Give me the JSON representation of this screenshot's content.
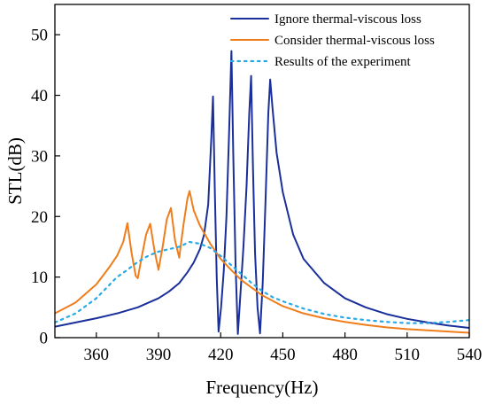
{
  "chart_data": {
    "type": "line",
    "title": "",
    "xlabel": "Frequency(Hz)",
    "ylabel": "STL(dB)",
    "xlim": [
      340,
      540
    ],
    "ylim": [
      0,
      55
    ],
    "xticks": [
      360,
      390,
      420,
      450,
      480,
      510,
      540
    ],
    "yticks": [
      0,
      10,
      20,
      30,
      40,
      50
    ],
    "xtick_labels": [
      "360",
      "390",
      "420",
      "450",
      "480",
      "510",
      "540"
    ],
    "ytick_labels": [
      "0",
      "10",
      "20",
      "30",
      "40",
      "50"
    ],
    "grid": false,
    "legend_position": "top-right",
    "series": [
      {
        "name": "Ignore thermal-viscous loss",
        "color": "#1a2f9a",
        "style": "solid",
        "x": [
          340,
          350,
          360,
          370,
          380,
          390,
          395,
          400,
          404,
          407,
          410,
          412,
          414,
          415.5,
          416.3,
          417.2,
          418.1,
          419,
          420.2,
          421.5,
          422.8,
          424,
          425.2,
          426.1,
          427.2,
          428.3,
          429.5,
          431,
          432.5,
          433.8,
          434.7,
          435.6,
          436.6,
          437.8,
          439,
          440.3,
          441.6,
          443,
          443.9,
          445,
          447,
          450,
          455,
          460,
          470,
          480,
          490,
          500,
          510,
          520,
          530,
          540
        ],
        "y": [
          1.8,
          2.5,
          3.2,
          4.0,
          5.0,
          6.5,
          7.6,
          9.0,
          10.8,
          12.4,
          14.6,
          17.0,
          22.0,
          33.0,
          39.8,
          24.0,
          10.0,
          1.0,
          5.0,
          11.0,
          20.0,
          33.0,
          47.3,
          30.0,
          12.0,
          0.6,
          7.0,
          15.0,
          25.0,
          37.0,
          43.2,
          28.0,
          14.0,
          5.0,
          0.7,
          9.0,
          22.0,
          37.0,
          42.6,
          38.0,
          30.5,
          24.0,
          17.0,
          13.0,
          9.0,
          6.5,
          5.0,
          3.9,
          3.1,
          2.5,
          2.0,
          1.6
        ]
      },
      {
        "name": "Consider thermal-viscous loss",
        "color": "#f07d1b",
        "style": "solid",
        "x": [
          340,
          350,
          360,
          366,
          370,
          373,
          375,
          377,
          379,
          380,
          382,
          384,
          386,
          388,
          390,
          392,
          394,
          396,
          398,
          400,
          402,
          404,
          405,
          407,
          410,
          415,
          420,
          425,
          430,
          440,
          450,
          460,
          470,
          480,
          490,
          500,
          510,
          520,
          530,
          540
        ],
        "y": [
          4.0,
          5.8,
          8.8,
          11.5,
          13.5,
          15.8,
          18.9,
          14.0,
          10.2,
          9.8,
          13.5,
          17.0,
          18.8,
          14.5,
          11.2,
          15.0,
          19.5,
          21.4,
          16.0,
          13.2,
          18.5,
          23.0,
          24.2,
          21.0,
          18.5,
          15.5,
          13.0,
          11.2,
          9.5,
          7.0,
          5.2,
          4.0,
          3.2,
          2.6,
          2.1,
          1.7,
          1.4,
          1.2,
          1.0,
          0.8
        ]
      },
      {
        "name": "Results of the experiment",
        "color": "#29a9e6",
        "style": "dotted",
        "x": [
          340,
          350,
          360,
          370,
          375,
          380,
          385,
          390,
          395,
          400,
          405,
          410,
          415,
          420,
          425,
          430,
          435,
          440,
          445,
          450,
          460,
          470,
          480,
          490,
          500,
          510,
          520,
          530,
          540
        ],
        "y": [
          2.5,
          4.0,
          6.5,
          10.0,
          11.2,
          12.5,
          13.5,
          14.2,
          14.6,
          15.0,
          15.8,
          15.5,
          14.8,
          13.5,
          12.0,
          10.5,
          9.0,
          7.7,
          6.7,
          6.0,
          4.8,
          3.9,
          3.3,
          2.9,
          2.6,
          2.4,
          2.4,
          2.6,
          2.9
        ]
      }
    ]
  }
}
